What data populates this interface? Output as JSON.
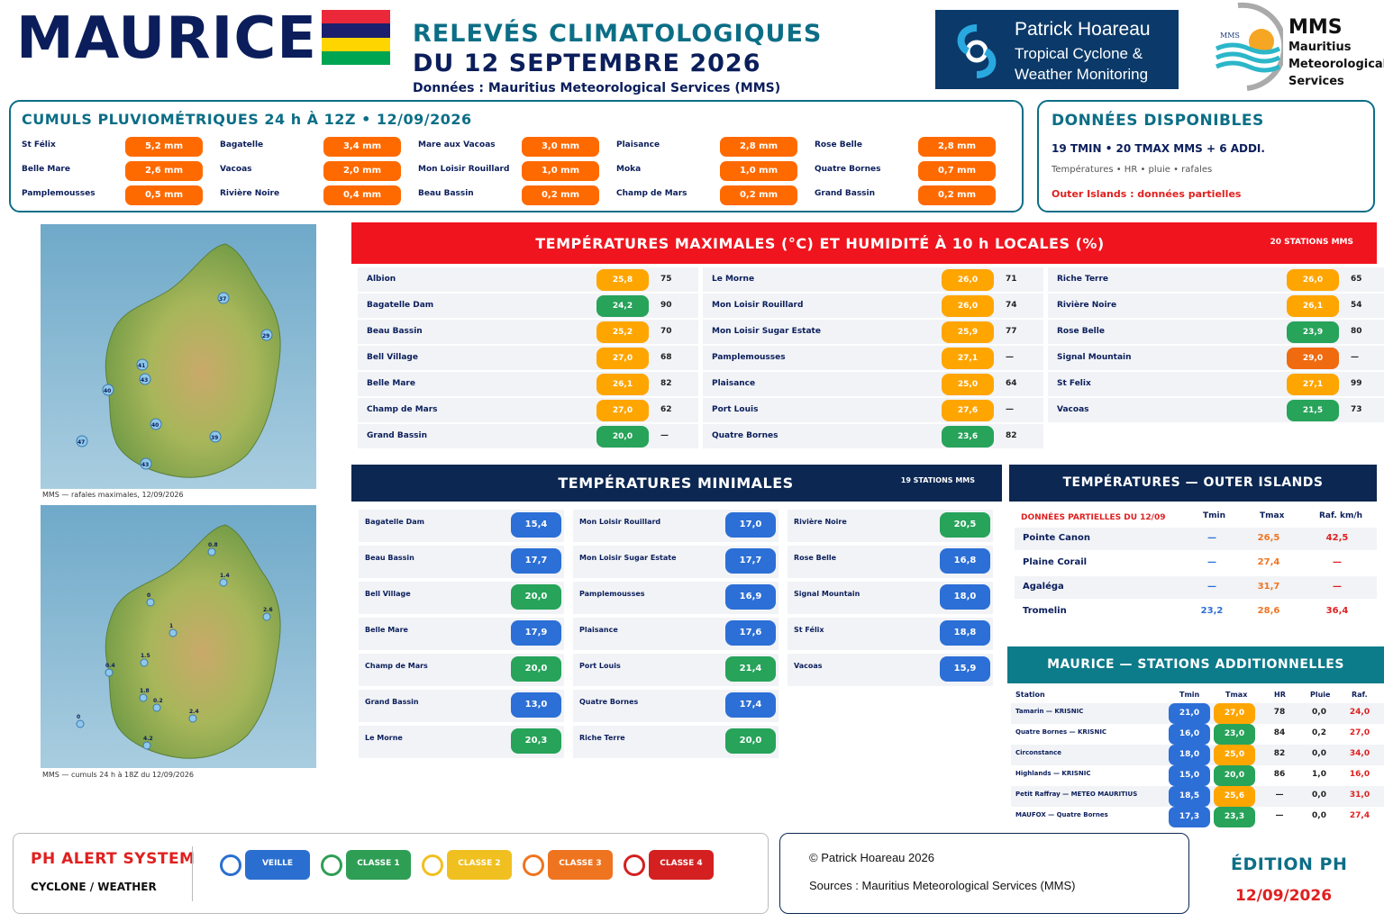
{
  "header": {
    "country": "MAURICE",
    "title1": "RELEVÉS CLIMATOLOGIQUES",
    "title2": "DU 12 SEPTEMBRE 2026",
    "source": "Données : Mauritius Meteorological Services (MMS)"
  },
  "flag_colors": [
    "#ea2839",
    "#1a206d",
    "#ffd500",
    "#00a551"
  ],
  "logos": {
    "ph_name": "Patrick Hoareau",
    "ph_sub1": "Tropical Cyclone &",
    "ph_sub2": "Weather Monitoring",
    "mms_mark": "MMS",
    "mms_short": "MMS",
    "mms_l1": "Mauritius",
    "mms_l2": "Meteorological",
    "mms_l3": "Services"
  },
  "rain": {
    "title": "CUMULS PLUVIOMÉTRIQUES 24 h À 12Z • 12/09/2026",
    "rows": [
      [
        {
          "name": "St Félix",
          "value": "5,2 mm"
        },
        {
          "name": "Bagatelle",
          "value": "3,4 mm"
        },
        {
          "name": "Mare aux Vacoas",
          "value": "3,0 mm"
        },
        {
          "name": "Plaisance",
          "value": "2,8 mm"
        },
        {
          "name": "Rose Belle",
          "value": "2,8 mm"
        }
      ],
      [
        {
          "name": "Belle Mare",
          "value": "2,6 mm"
        },
        {
          "name": "Vacoas",
          "value": "2,0 mm"
        },
        {
          "name": "Mon Loisir Rouillard",
          "value": "1,0 mm"
        },
        {
          "name": "Moka",
          "value": "1,0 mm"
        },
        {
          "name": "Quatre Bornes",
          "value": "0,7 mm"
        }
      ],
      [
        {
          "name": "Pamplemousses",
          "value": "0,5 mm"
        },
        {
          "name": "Rivière Noire",
          "value": "0,4 mm"
        },
        {
          "name": "Beau Bassin",
          "value": "0,2 mm"
        },
        {
          "name": "Champ de Mars",
          "value": "0,2 mm"
        },
        {
          "name": "Grand Bassin",
          "value": "0,2 mm"
        }
      ]
    ]
  },
  "dispo": {
    "title": "DONNÉES DISPONIBLES",
    "line1": "19 TMIN • 20 TMAX MMS + 6 ADDI.",
    "line2": "Températures • HR • pluie • rafales",
    "line3": "Outer Islands : données partielles"
  },
  "maps": {
    "gust_caption": "MMS — rafales maximales, 12/09/2026",
    "rain_caption": "MMS — cumuls 24 h à 18Z du 12/09/2026",
    "gust_labels": [
      "37",
      "29",
      "41",
      "43",
      "40",
      "40",
      "39",
      "47",
      "43"
    ],
    "rain_labels": [
      "0.8",
      "1.4",
      "0",
      "2.6",
      "1",
      "1.5",
      "0.4",
      "1.8",
      "0.2",
      "2.4",
      "0",
      "4.2"
    ]
  },
  "tmax": {
    "title": "TEMPÉRATURES MAXIMALES (°C) ET HUMIDITÉ À 10 h LOCALES (%)",
    "stations": "20 STATIONS MMS",
    "columns": [
      [
        {
          "name": "Albion",
          "t": "25,8",
          "hr": "75",
          "c": "o"
        },
        {
          "name": "Bagatelle Dam",
          "t": "24,2",
          "hr": "90",
          "c": "g"
        },
        {
          "name": "Beau Bassin",
          "t": "25,2",
          "hr": "70",
          "c": "o"
        },
        {
          "name": "Bell Village",
          "t": "27,0",
          "hr": "68",
          "c": "o"
        },
        {
          "name": "Belle Mare",
          "t": "26,1",
          "hr": "82",
          "c": "o"
        },
        {
          "name": "Champ de Mars",
          "t": "27,0",
          "hr": "62",
          "c": "o"
        },
        {
          "name": "Grand Bassin",
          "t": "20,0",
          "hr": "—",
          "c": "g"
        }
      ],
      [
        {
          "name": "Le Morne",
          "t": "26,0",
          "hr": "71",
          "c": "o"
        },
        {
          "name": "Mon Loisir Rouillard",
          "t": "26,0",
          "hr": "74",
          "c": "o"
        },
        {
          "name": "Mon Loisir Sugar Estate",
          "t": "25,9",
          "hr": "77",
          "c": "o"
        },
        {
          "name": "Pamplemousses",
          "t": "27,1",
          "hr": "—",
          "c": "o"
        },
        {
          "name": "Plaisance",
          "t": "25,0",
          "hr": "64",
          "c": "o"
        },
        {
          "name": "Port Louis",
          "t": "27,6",
          "hr": "—",
          "c": "o"
        },
        {
          "name": "Quatre Bornes",
          "t": "23,6",
          "hr": "82",
          "c": "g"
        }
      ],
      [
        {
          "name": "Riche Terre",
          "t": "26,0",
          "hr": "65",
          "c": "o"
        },
        {
          "name": "Rivière Noire",
          "t": "26,1",
          "hr": "54",
          "c": "o"
        },
        {
          "name": "Rose Belle",
          "t": "23,9",
          "hr": "80",
          "c": "g"
        },
        {
          "name": "Signal Mountain",
          "t": "29,0",
          "hr": "—",
          "c": "r"
        },
        {
          "name": "St Felix",
          "t": "27,1",
          "hr": "99",
          "c": "o"
        },
        {
          "name": "Vacoas",
          "t": "21,5",
          "hr": "73",
          "c": "g"
        }
      ]
    ]
  },
  "tmin": {
    "title": "TEMPÉRATURES MINIMALES",
    "stations": "19 STATIONS MMS",
    "columns": [
      [
        {
          "name": "Bagatelle Dam",
          "t": "15,4",
          "c": "b"
        },
        {
          "name": "Beau Bassin",
          "t": "17,7",
          "c": "b"
        },
        {
          "name": "Bell Village",
          "t": "20,0",
          "c": "g"
        },
        {
          "name": "Belle Mare",
          "t": "17,9",
          "c": "b"
        },
        {
          "name": "Champ de Mars",
          "t": "20,0",
          "c": "g"
        },
        {
          "name": "Grand Bassin",
          "t": "13,0",
          "c": "b"
        },
        {
          "name": "Le Morne",
          "t": "20,3",
          "c": "g"
        }
      ],
      [
        {
          "name": "Mon Loisir Rouillard",
          "t": "17,0",
          "c": "b"
        },
        {
          "name": "Mon Loisir Sugar Estate",
          "t": "17,7",
          "c": "b"
        },
        {
          "name": "Pamplemousses",
          "t": "16,9",
          "c": "b"
        },
        {
          "name": "Plaisance",
          "t": "17,6",
          "c": "b"
        },
        {
          "name": "Port Louis",
          "t": "21,4",
          "c": "g"
        },
        {
          "name": "Quatre Bornes",
          "t": "17,4",
          "c": "b"
        },
        {
          "name": "Riche Terre",
          "t": "20,0",
          "c": "g"
        }
      ],
      [
        {
          "name": "Rivière Noire",
          "t": "20,5",
          "c": "g"
        },
        {
          "name": "Rose Belle",
          "t": "16,8",
          "c": "b"
        },
        {
          "name": "Signal Mountain",
          "t": "18,0",
          "c": "b"
        },
        {
          "name": "St Félix",
          "t": "18,8",
          "c": "b"
        },
        {
          "name": "Vacoas",
          "t": "15,9",
          "c": "b"
        }
      ]
    ]
  },
  "outer": {
    "title": "TEMPÉRATURES — OUTER ISLANDS",
    "subtitle": "DONNÉES PARTIELLES DU 12/09",
    "col_tmin": "Tmin",
    "col_tmax": "Tmax",
    "col_raf": "Raf. km/h",
    "rows": [
      {
        "name": "Pointe Canon",
        "tmin": "—",
        "tmax": "26,5",
        "raf": "42,5"
      },
      {
        "name": "Plaine Corail",
        "tmin": "—",
        "tmax": "27,4",
        "raf": "—"
      },
      {
        "name": "Agaléga",
        "tmin": "—",
        "tmax": "31,7",
        "raf": "—"
      },
      {
        "name": "Tromelin",
        "tmin": "23,2",
        "tmax": "28,6",
        "raf": "36,4"
      }
    ]
  },
  "additional": {
    "title": "MAURICE — STATIONS ADDITIONNELLES",
    "cols": [
      "Station",
      "Tmin",
      "Tmax",
      "HR",
      "Pluie",
      "Raf."
    ],
    "rows": [
      {
        "name": "Tamarin — KRISNIC",
        "tmin": "21,0",
        "tmax": "27,0",
        "tmaxc": "o",
        "hr": "78",
        "pluie": "0,0",
        "raf": "24,0"
      },
      {
        "name": "Quatre Bornes — KRISNIC",
        "tmin": "16,0",
        "tmax": "23,0",
        "tmaxc": "g",
        "hr": "84",
        "pluie": "0,2",
        "raf": "27,0"
      },
      {
        "name": "Circonstance",
        "tmin": "18,0",
        "tmax": "25,0",
        "tmaxc": "o",
        "hr": "82",
        "pluie": "0,0",
        "raf": "34,0"
      },
      {
        "name": "Highlands — KRISNIC",
        "tmin": "15,0",
        "tmax": "20,0",
        "tmaxc": "g",
        "hr": "86",
        "pluie": "1,0",
        "raf": "16,0"
      },
      {
        "name": "Petit Raffray — METEO MAURITIUS",
        "tmin": "18,5",
        "tmax": "25,6",
        "tmaxc": "o",
        "hr": "—",
        "pluie": "0,0",
        "raf": "31,0"
      },
      {
        "name": "MAUFOX — Quatre Bornes",
        "tmin": "17,3",
        "tmax": "23,3",
        "tmaxc": "g",
        "hr": "—",
        "pluie": "0,0",
        "raf": "27,4"
      }
    ]
  },
  "alert": {
    "title": "PH ALERT SYSTEM",
    "subtitle": "CYCLONE / WEATHER",
    "classes": [
      {
        "label": "VEILLE",
        "color": "#2a6fd0"
      },
      {
        "label": "CLASSE 1",
        "color": "#2e9e55"
      },
      {
        "label": "CLASSE 2",
        "color": "#f0c020"
      },
      {
        "label": "CLASSE 3",
        "color": "#ef7420"
      },
      {
        "label": "CLASSE 4",
        "color": "#d42020"
      }
    ]
  },
  "footer": {
    "copyright": "© Patrick Hoareau 2026",
    "sources": "Sources : Mauritius Meteorological Services (MMS)",
    "edition": "ÉDITION PH",
    "date": "12/09/2026"
  },
  "colors": {
    "orange": "#ffa500",
    "green": "#27a35a",
    "red": "#f06a10",
    "blue": "#2c6fd6",
    "rain": "#ff6a00"
  }
}
